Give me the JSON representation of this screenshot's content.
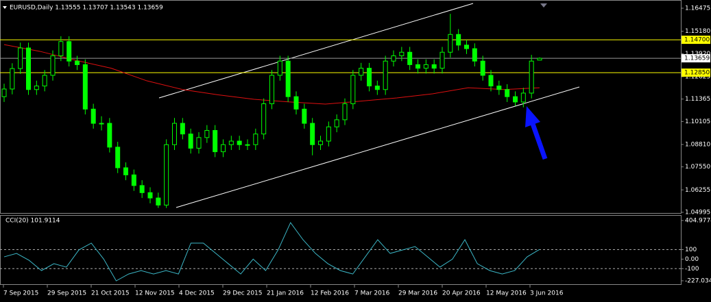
{
  "chart_data": [
    {
      "type": "candlestick",
      "title": "EURUSD,Daily  1.13555 1.13707 1.13543 1.13659",
      "up_color": "#00ff00",
      "down_color": "#00ff00",
      "candles": [
        [
          1.115,
          1.1223,
          1.112,
          1.1193
        ],
        [
          1.1193,
          1.1338,
          1.1163,
          1.1308
        ],
        [
          1.1308,
          1.1454,
          1.1278,
          1.1424
        ],
        [
          1.1424,
          1.1454,
          1.116,
          1.119
        ],
        [
          1.119,
          1.124,
          1.116,
          1.121
        ],
        [
          1.121,
          1.13,
          1.118,
          1.127
        ],
        [
          1.127,
          1.141,
          1.124,
          1.138
        ],
        [
          1.138,
          1.149,
          1.135,
          1.146
        ],
        [
          1.146,
          1.149,
          1.132,
          1.135
        ],
        [
          1.135,
          1.138,
          1.13,
          1.133
        ],
        [
          1.133,
          1.136,
          1.105,
          1.108
        ],
        [
          1.108,
          1.111,
          1.097,
          1.1
        ],
        [
          1.1,
          1.104,
          1.096,
          1.1
        ],
        [
          1.1,
          1.103,
          1.0836,
          1.0866
        ],
        [
          1.0866,
          1.0896,
          1.072,
          1.075
        ],
        [
          1.075,
          1.078,
          1.068,
          1.071
        ],
        [
          1.071,
          1.074,
          1.062,
          1.065
        ],
        [
          1.065,
          1.068,
          1.058,
          1.061
        ],
        [
          1.061,
          1.064,
          1.055,
          1.058
        ],
        [
          1.058,
          1.061,
          1.0524,
          1.054
        ],
        [
          1.054,
          1.091,
          1.0524,
          1.088
        ],
        [
          1.088,
          1.103,
          1.085,
          1.1
        ],
        [
          1.1,
          1.103,
          1.091,
          1.094
        ],
        [
          1.094,
          1.097,
          1.083,
          1.086
        ],
        [
          1.086,
          1.095,
          1.083,
          1.092
        ],
        [
          1.092,
          1.099,
          1.089,
          1.096
        ],
        [
          1.096,
          1.099,
          1.081,
          1.084
        ],
        [
          1.084,
          1.091,
          1.081,
          1.088
        ],
        [
          1.088,
          1.093,
          1.085,
          1.09
        ],
        [
          1.09,
          1.093,
          1.085,
          1.088
        ],
        [
          1.088,
          1.091,
          1.085,
          1.088
        ],
        [
          1.088,
          1.097,
          1.085,
          1.094
        ],
        [
          1.094,
          1.114,
          1.091,
          1.111
        ],
        [
          1.111,
          1.13,
          1.108,
          1.127
        ],
        [
          1.127,
          1.138,
          1.124,
          1.135
        ],
        [
          1.135,
          1.138,
          1.112,
          1.115
        ],
        [
          1.115,
          1.118,
          1.105,
          1.108
        ],
        [
          1.108,
          1.111,
          1.097,
          1.1
        ],
        [
          1.1,
          1.103,
          1.082,
          1.088
        ],
        [
          1.088,
          1.093,
          1.085,
          1.09
        ],
        [
          1.09,
          1.101,
          1.087,
          1.098
        ],
        [
          1.098,
          1.105,
          1.095,
          1.102
        ],
        [
          1.102,
          1.114,
          1.099,
          1.111
        ],
        [
          1.111,
          1.13,
          1.108,
          1.127
        ],
        [
          1.127,
          1.134,
          1.124,
          1.131
        ],
        [
          1.131,
          1.134,
          1.118,
          1.121
        ],
        [
          1.121,
          1.124,
          1.116,
          1.119
        ],
        [
          1.119,
          1.138,
          1.116,
          1.135
        ],
        [
          1.135,
          1.141,
          1.132,
          1.138
        ],
        [
          1.138,
          1.143,
          1.135,
          1.14
        ],
        [
          1.14,
          1.143,
          1.13,
          1.133
        ],
        [
          1.133,
          1.136,
          1.128,
          1.131
        ],
        [
          1.131,
          1.136,
          1.128,
          1.133
        ],
        [
          1.133,
          1.136,
          1.128,
          1.131
        ],
        [
          1.131,
          1.143,
          1.128,
          1.14
        ],
        [
          1.14,
          1.1616,
          1.137,
          1.15
        ],
        [
          1.15,
          1.153,
          1.141,
          1.144
        ],
        [
          1.144,
          1.147,
          1.139,
          1.142
        ],
        [
          1.142,
          1.145,
          1.132,
          1.135
        ],
        [
          1.135,
          1.138,
          1.124,
          1.127
        ],
        [
          1.127,
          1.13,
          1.118,
          1.121
        ],
        [
          1.121,
          1.124,
          1.116,
          1.119
        ],
        [
          1.119,
          1.122,
          1.112,
          1.115
        ],
        [
          1.115,
          1.118,
          1.1098,
          1.112
        ],
        [
          1.112,
          1.12,
          1.109,
          1.117
        ],
        [
          1.117,
          1.1385,
          1.114,
          1.135
        ],
        [
          1.13555,
          1.13707,
          1.13543,
          1.13659
        ]
      ],
      "ma": {
        "color": "#e01010",
        "values": [
          1.1443,
          1.1405,
          1.1355,
          1.131,
          1.1239,
          1.119,
          1.116,
          1.1135,
          1.112,
          1.1108,
          1.1125,
          1.1143,
          1.1166,
          1.12,
          1.119,
          1.12
        ]
      },
      "ylim": [
        1.04995,
        1.16475
      ],
      "yticks": [
        1.16475,
        {
          "value": 1.1518,
          "label": "1.15180"
        },
        {
          "value": 1.1392,
          "label": "1.13920"
        },
        1.12625,
        1.11365,
        1.10105,
        {
          "value": 1.0881,
          "label": "1.08810"
        },
        {
          "value": 1.0755,
          "label": "1.07550"
        },
        1.06255,
        1.04995
      ],
      "levels": [
        {
          "value": 1.147,
          "label": "1.14700"
        },
        {
          "value": 1.1285,
          "label": "1.12850"
        }
      ],
      "level_color": "#ffff00",
      "last_price": 1.13659,
      "x_labels": [
        "7 Sep 2015",
        "29 Sep 2015",
        "21 Oct 2015",
        "12 Nov 2015",
        "4 Dec 2015",
        "29 Dec 2015",
        "21 Jan 2016",
        "12 Feb 2016",
        "7 Mar 2016",
        "29 Mar 2016",
        "20 Apr 2016",
        "12 May 2016",
        "3 Jun 2016"
      ]
    },
    {
      "type": "line",
      "title": "CCI(20) 101.9114",
      "color": "#3cb8c8",
      "values": [
        24,
        60,
        -12,
        -120,
        -48,
        -84,
        96,
        168,
        0,
        -228,
        -156,
        -120,
        -156,
        -120,
        -156,
        168,
        168,
        60,
        -48,
        -156,
        0,
        -120,
        96,
        383,
        204,
        60,
        -48,
        -120,
        -156,
        24,
        204,
        60,
        96,
        132,
        24,
        -84,
        0,
        204,
        -48,
        -120,
        -156,
        -120,
        24,
        101.9114
      ],
      "ylim": [
        -227.0348,
        404.9774
      ],
      "yticks": [
        404.9774,
        100,
        {
          "value": 0,
          "label": "0.00"
        },
        -100,
        -227.0348
      ],
      "levels": [
        100,
        -100
      ]
    }
  ]
}
